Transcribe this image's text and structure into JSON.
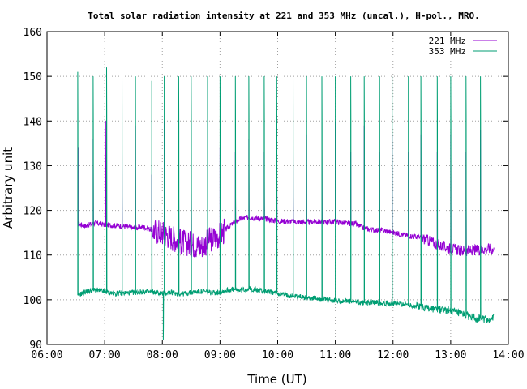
{
  "chart_data": {
    "type": "line",
    "title": "Total solar radiation intensity at 221 and 353 MHz (uncal.), H-pol., MRO.",
    "xlabel": "Time (UT)",
    "ylabel": "Arbitrary unit",
    "xlim": [
      "06:00",
      "14:00"
    ],
    "ylim": [
      90,
      160
    ],
    "xticks": [
      "06:00",
      "07:00",
      "08:00",
      "09:00",
      "10:00",
      "11:00",
      "12:00",
      "13:00",
      "14:00"
    ],
    "yticks": [
      "90",
      "100",
      "110",
      "120",
      "130",
      "140",
      "150",
      "160"
    ],
    "grid": true,
    "legend_position": "top-right",
    "series": [
      {
        "name": "221 MHz",
        "color": "#9400d3",
        "points": [
          [
            "06:32",
            117.0
          ],
          [
            "06:40",
            116.5
          ],
          [
            "06:50",
            117.2
          ],
          [
            "07:00",
            116.8
          ],
          [
            "07:10",
            116.6
          ],
          [
            "07:20",
            116.5
          ],
          [
            "07:30",
            116.0
          ],
          [
            "07:40",
            116.3
          ],
          [
            "07:50",
            115.6
          ],
          [
            "08:00",
            115.0
          ],
          [
            "08:10",
            114.0
          ],
          [
            "08:20",
            113.0
          ],
          [
            "08:30",
            112.5
          ],
          [
            "08:40",
            112.0
          ],
          [
            "08:50",
            113.5
          ],
          [
            "09:00",
            114.5
          ],
          [
            "09:10",
            116.5
          ],
          [
            "09:20",
            118.0
          ],
          [
            "09:30",
            118.5
          ],
          [
            "09:40",
            118.2
          ],
          [
            "09:50",
            118.0
          ],
          [
            "10:00",
            117.6
          ],
          [
            "10:10",
            117.6
          ],
          [
            "10:20",
            117.4
          ],
          [
            "10:30",
            117.3
          ],
          [
            "10:40",
            117.5
          ],
          [
            "10:50",
            117.4
          ],
          [
            "11:00",
            117.5
          ],
          [
            "11:10",
            117.1
          ],
          [
            "11:20",
            117.0
          ],
          [
            "11:30",
            116.0
          ],
          [
            "11:40",
            115.6
          ],
          [
            "11:50",
            115.5
          ],
          [
            "12:00",
            115.0
          ],
          [
            "12:10",
            114.6
          ],
          [
            "12:20",
            114.2
          ],
          [
            "12:30",
            113.8
          ],
          [
            "12:40",
            113.0
          ],
          [
            "12:50",
            112.0
          ],
          [
            "13:00",
            111.5
          ],
          [
            "13:10",
            111.0
          ],
          [
            "13:20",
            111.0
          ],
          [
            "13:30",
            111.2
          ],
          [
            "13:40",
            111.5
          ],
          [
            "13:45",
            111.0
          ]
        ],
        "spikes": [
          [
            "06:33",
            134
          ],
          [
            "06:48",
            136
          ],
          [
            "07:01",
            140
          ],
          [
            "07:18",
            133
          ],
          [
            "07:32",
            139
          ],
          [
            "07:49",
            128
          ],
          [
            "08:02",
            140
          ],
          [
            "08:17",
            128
          ],
          [
            "08:30",
            135
          ],
          [
            "08:47",
            134
          ],
          [
            "09:00",
            134
          ],
          [
            "09:16",
            133
          ],
          [
            "09:30",
            136
          ],
          [
            "09:46",
            133
          ],
          [
            "09:59",
            137
          ],
          [
            "10:16",
            133
          ],
          [
            "10:30",
            137
          ],
          [
            "10:46",
            134
          ],
          [
            "11:00",
            140
          ],
          [
            "11:16",
            133
          ],
          [
            "11:30",
            139
          ],
          [
            "11:46",
            133
          ],
          [
            "11:59",
            137
          ],
          [
            "12:16",
            133
          ],
          [
            "12:29",
            137
          ],
          [
            "12:46",
            133
          ],
          [
            "13:00",
            137
          ],
          [
            "13:16",
            133
          ],
          [
            "13:31",
            138
          ]
        ]
      },
      {
        "name": "353 MHz",
        "color": "#009e73",
        "points": [
          [
            "06:32",
            101.0
          ],
          [
            "06:40",
            101.8
          ],
          [
            "06:50",
            102.2
          ],
          [
            "07:00",
            101.8
          ],
          [
            "07:10",
            101.4
          ],
          [
            "07:20",
            101.5
          ],
          [
            "07:30",
            101.6
          ],
          [
            "07:40",
            101.8
          ],
          [
            "07:50",
            101.7
          ],
          [
            "08:00",
            101.4
          ],
          [
            "08:10",
            101.6
          ],
          [
            "08:20",
            101.3
          ],
          [
            "08:30",
            101.6
          ],
          [
            "08:40",
            101.9
          ],
          [
            "08:50",
            101.6
          ],
          [
            "09:00",
            101.7
          ],
          [
            "09:10",
            102.3
          ],
          [
            "09:20",
            102.1
          ],
          [
            "09:30",
            102.5
          ],
          [
            "09:40",
            102.1
          ],
          [
            "09:50",
            101.8
          ],
          [
            "10:00",
            101.5
          ],
          [
            "10:10",
            101.0
          ],
          [
            "10:20",
            100.8
          ],
          [
            "10:30",
            100.4
          ],
          [
            "10:40",
            100.3
          ],
          [
            "10:50",
            100.0
          ],
          [
            "11:00",
            99.8
          ],
          [
            "11:10",
            99.7
          ],
          [
            "11:20",
            99.5
          ],
          [
            "11:30",
            99.3
          ],
          [
            "11:40",
            99.5
          ],
          [
            "11:50",
            99.3
          ],
          [
            "12:00",
            99.1
          ],
          [
            "12:10",
            99.1
          ],
          [
            "12:20",
            98.7
          ],
          [
            "12:30",
            98.5
          ],
          [
            "12:40",
            98.0
          ],
          [
            "12:50",
            97.8
          ],
          [
            "13:00",
            97.5
          ],
          [
            "13:10",
            96.8
          ],
          [
            "13:20",
            96.2
          ],
          [
            "13:30",
            95.8
          ],
          [
            "13:40",
            95.5
          ],
          [
            "13:45",
            96.0
          ]
        ],
        "spikes": [
          [
            "06:32",
            151
          ],
          [
            "06:48",
            150
          ],
          [
            "07:02",
            152
          ],
          [
            "07:18",
            150
          ],
          [
            "07:32",
            150
          ],
          [
            "07:49",
            149
          ],
          [
            "08:02",
            150
          ],
          [
            "08:17",
            150
          ],
          [
            "08:30",
            150
          ],
          [
            "08:47",
            150
          ],
          [
            "09:00",
            150
          ],
          [
            "09:16",
            150
          ],
          [
            "09:30",
            150
          ],
          [
            "09:46",
            150
          ],
          [
            "09:59",
            150
          ],
          [
            "10:16",
            150
          ],
          [
            "10:30",
            150
          ],
          [
            "10:46",
            150
          ],
          [
            "11:00",
            150
          ],
          [
            "11:16",
            150
          ],
          [
            "11:30",
            150
          ],
          [
            "11:46",
            150
          ],
          [
            "11:59",
            150
          ],
          [
            "12:16",
            150
          ],
          [
            "12:29",
            150
          ],
          [
            "12:46",
            150
          ],
          [
            "13:00",
            150
          ],
          [
            "13:16",
            150
          ],
          [
            "13:31",
            150
          ]
        ],
        "dips": [
          [
            "08:01",
            91
          ]
        ]
      }
    ]
  }
}
